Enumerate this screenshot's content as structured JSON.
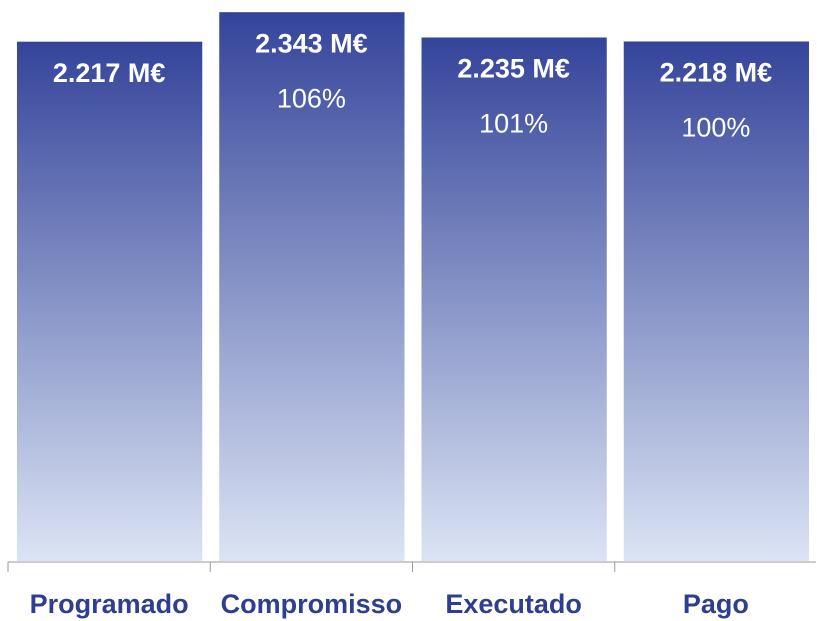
{
  "chart_data": {
    "type": "bar",
    "categories": [
      "Programado",
      "Compromisso",
      "Executado",
      "Pago"
    ],
    "values": [
      2217,
      2343,
      2235,
      2218
    ],
    "value_labels": [
      "2.217 M€",
      "2.343 M€",
      "2.235 M€",
      "2.218 M€"
    ],
    "percent_values": [
      null,
      106,
      101,
      100
    ],
    "percent_labels": [
      null,
      "106%",
      "101%",
      "100%"
    ],
    "color": [
      "#34449a",
      "#dbe4f4"
    ],
    "ylim": [
      0,
      2395
    ]
  }
}
